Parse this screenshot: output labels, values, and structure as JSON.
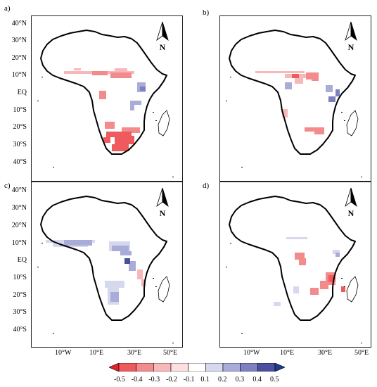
{
  "panels": [
    {
      "label": "a)"
    },
    {
      "label": "b)"
    },
    {
      "label": "c)"
    },
    {
      "label": "d)"
    }
  ],
  "lat_labels": [
    "40°N",
    "30°N",
    "20°N",
    "10°N",
    "EQ",
    "10°S",
    "20°S",
    "30°S",
    "40°S"
  ],
  "lon_labels": [
    "10°W",
    "10°E",
    "30°E",
    "50°E"
  ],
  "north_arrow_label": "N",
  "colorbar": {
    "labels": [
      "-0.5",
      "-0.4",
      "-0.3",
      "-0.2",
      "-0.1",
      "0.1",
      "0.2",
      "0.3",
      "0.4",
      "0.5"
    ],
    "colors": [
      "#e8202a",
      "#ef5a5e",
      "#f38a8c",
      "#f8b7b8",
      "#fce0e0",
      "#ffffff",
      "#d6d8ee",
      "#a9acd8",
      "#7d80bf",
      "#4a4f9f",
      "#1f3a93"
    ]
  }
}
